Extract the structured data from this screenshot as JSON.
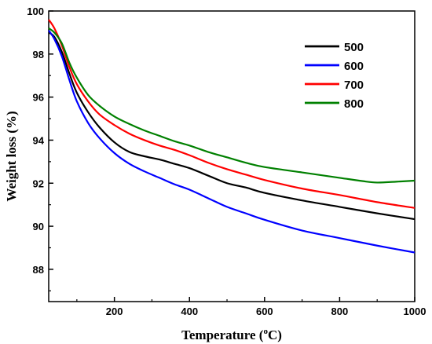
{
  "chart_data": {
    "type": "line",
    "title": "",
    "xlabel_main": "Temperature (",
    "xlabel_sup": "o",
    "xlabel_end": "C)",
    "ylabel": "Weight loss (%)",
    "xlim": [
      25,
      1000
    ],
    "ylim": [
      86.5,
      100
    ],
    "xticks": [
      200,
      400,
      600,
      800,
      1000
    ],
    "yticks": [
      88,
      90,
      92,
      94,
      96,
      98,
      100
    ],
    "grid": false,
    "legend_position": "top-right",
    "series": [
      {
        "name": "500",
        "color": "#000000",
        "x": [
          25,
          40,
          60,
          80,
          100,
          130,
          160,
          200,
          240,
          280,
          320,
          360,
          400,
          450,
          500,
          550,
          600,
          700,
          800,
          900,
          1000
        ],
        "y": [
          99.0,
          98.8,
          98.1,
          97.1,
          96.2,
          95.3,
          94.6,
          93.9,
          93.45,
          93.25,
          93.1,
          92.9,
          92.7,
          92.35,
          92.0,
          91.8,
          91.55,
          91.2,
          90.9,
          90.6,
          90.33
        ]
      },
      {
        "name": "600",
        "color": "#0000ff",
        "x": [
          25,
          40,
          60,
          80,
          100,
          130,
          160,
          200,
          240,
          280,
          320,
          360,
          400,
          450,
          500,
          550,
          600,
          700,
          800,
          900,
          1000
        ],
        "y": [
          99.1,
          98.7,
          97.9,
          96.8,
          95.8,
          94.8,
          94.1,
          93.4,
          92.9,
          92.55,
          92.25,
          91.95,
          91.7,
          91.3,
          90.9,
          90.6,
          90.3,
          89.8,
          89.45,
          89.1,
          88.78
        ]
      },
      {
        "name": "700",
        "color": "#ff0000",
        "x": [
          25,
          40,
          60,
          80,
          100,
          130,
          160,
          200,
          240,
          280,
          320,
          360,
          400,
          450,
          500,
          550,
          600,
          700,
          800,
          900,
          1000
        ],
        "y": [
          99.6,
          99.2,
          98.4,
          97.4,
          96.6,
          95.8,
          95.2,
          94.7,
          94.3,
          94.0,
          93.75,
          93.55,
          93.3,
          92.95,
          92.65,
          92.4,
          92.15,
          91.75,
          91.45,
          91.12,
          90.85
        ]
      },
      {
        "name": "800",
        "color": "#008000",
        "x": [
          25,
          40,
          60,
          80,
          100,
          130,
          160,
          200,
          240,
          280,
          320,
          360,
          400,
          450,
          500,
          550,
          600,
          700,
          800,
          860,
          900,
          950,
          1000
        ],
        "y": [
          99.2,
          99.0,
          98.5,
          97.6,
          96.9,
          96.1,
          95.6,
          95.1,
          94.75,
          94.45,
          94.2,
          93.95,
          93.75,
          93.45,
          93.2,
          92.95,
          92.75,
          92.5,
          92.25,
          92.1,
          92.03,
          92.07,
          92.12
        ]
      }
    ]
  }
}
